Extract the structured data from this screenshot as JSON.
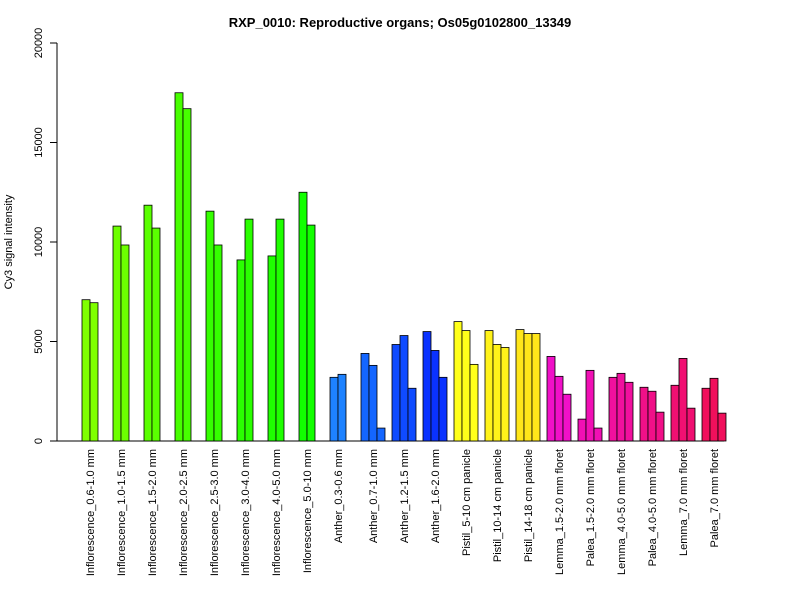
{
  "chart_data": {
    "type": "bar",
    "title": "RXP_0010: Reproductive organs; Os05g0102800_13349",
    "xlabel": "",
    "ylabel": "Cy3 signal intensity",
    "ylim": [
      0,
      20000
    ],
    "yticks": [
      0,
      5000,
      10000,
      15000,
      20000
    ],
    "grid": false,
    "categories": [
      "Inflorescence_0.6-1.0 mm",
      "Inflorescence_1.0-1.5 mm",
      "Inflorescence_1.5-2.0 mm",
      "Inflorescence_2.0-2.5 mm",
      "Inflorescence_2.5-3.0 mm",
      "Inflorescence_3.0-4.0 mm",
      "Inflorescence_4.0-5.0 mm",
      "Inflorescence_5.0-10 mm",
      "Anther_0.3-0.6 mm",
      "Anther_0.7-1.0 mm",
      "Anther_1.2-1.5 mm",
      "Anther_1.6-2.0 mm",
      "Pistil_5-10 cm panicle",
      "Pistil_10-14 cm panicle",
      "Pistil_14-18 cm panicle",
      "Lemma_1.5-2.0 mm floret",
      "Palea_1.5-2.0 mm floret",
      "Lemma_4.0-5.0 mm floret",
      "Palea_4.0-5.0 mm floret",
      "Lemma_7.0 mm floret",
      "Palea_7.0 mm floret"
    ],
    "groups": [
      {
        "color": "#7FFF00",
        "values": [
          7100,
          6950
        ]
      },
      {
        "color": "#6CFF00",
        "values": [
          10800,
          9850
        ]
      },
      {
        "color": "#5AFF00",
        "values": [
          11850,
          10700
        ]
      },
      {
        "color": "#47FF00",
        "values": [
          17500,
          16700
        ]
      },
      {
        "color": "#35FF00",
        "values": [
          11550,
          9850
        ]
      },
      {
        "color": "#2AFF00",
        "values": [
          9100,
          11150
        ]
      },
      {
        "color": "#1FFF00",
        "values": [
          9300,
          11150
        ]
      },
      {
        "color": "#12FF00",
        "values": [
          12500,
          10850
        ]
      },
      {
        "color": "#1E82FF",
        "values": [
          3200,
          3350
        ]
      },
      {
        "color": "#1466FF",
        "values": [
          4400,
          3800,
          650
        ]
      },
      {
        "color": "#0F4BFF",
        "values": [
          4850,
          5300,
          2650
        ]
      },
      {
        "color": "#0A32FF",
        "values": [
          5500,
          4550,
          3200
        ]
      },
      {
        "color": "#FFFF1A",
        "values": [
          6000,
          5550,
          3850
        ]
      },
      {
        "color": "#FFF21A",
        "values": [
          5550,
          4850,
          4700
        ]
      },
      {
        "color": "#FFE61A",
        "values": [
          5600,
          5400,
          5400
        ]
      },
      {
        "color": "#F010C8",
        "values": [
          4250,
          3250,
          2350
        ]
      },
      {
        "color": "#F010B4",
        "values": [
          1100,
          3550,
          650
        ]
      },
      {
        "color": "#F0109E",
        "values": [
          3200,
          3400,
          2950
        ]
      },
      {
        "color": "#F01088",
        "values": [
          2700,
          2500,
          1450
        ]
      },
      {
        "color": "#F01072",
        "values": [
          2800,
          4150,
          1650
        ]
      },
      {
        "color": "#F0105C",
        "values": [
          2650,
          3150,
          1400
        ]
      }
    ]
  }
}
